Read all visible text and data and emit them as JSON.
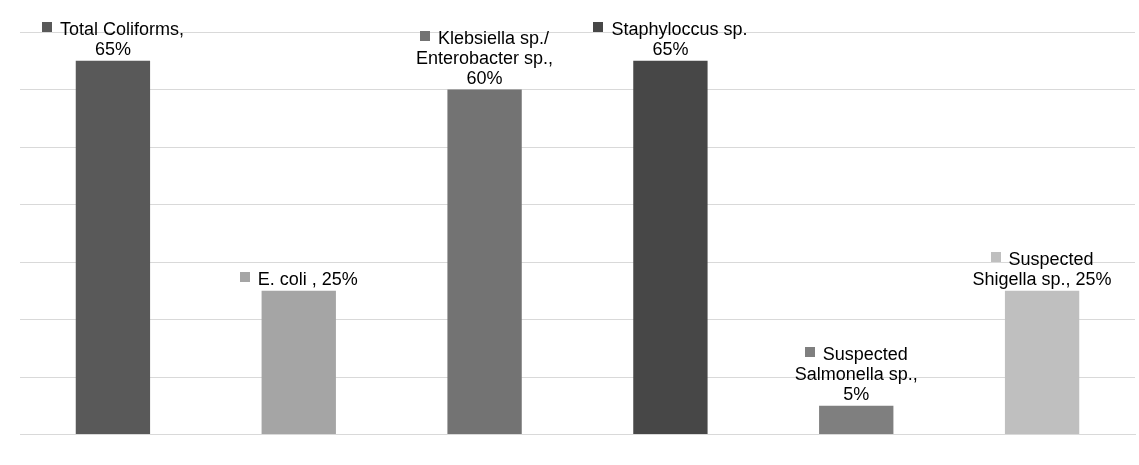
{
  "chart_data": {
    "type": "bar",
    "categories": [
      null,
      null,
      null,
      null,
      null,
      null
    ],
    "values": [
      65,
      25,
      60,
      65,
      5,
      25
    ],
    "colors": [
      "#595959",
      "#a5a5a5",
      "#737373",
      "#474747",
      "#7f7f7f",
      "#bfbfbf"
    ],
    "value_labels": [
      "Total Coliforms, 65%",
      "E. coli , 25%",
      "Klebsiella sp./ Enterobacter sp., 60%",
      "Staphyloccus sp. 65%",
      "Suspected Salmonella sp., 5%",
      "Suspected Shigella sp., 25%"
    ],
    "ylim": [
      0,
      70
    ],
    "yticks": [
      {
        "value": 0,
        "label": null
      },
      {
        "value": 10,
        "label": null
      },
      {
        "value": 20,
        "label": null
      },
      {
        "value": 30,
        "label": null
      },
      {
        "value": 40,
        "label": null
      },
      {
        "value": 50,
        "label": null
      },
      {
        "value": 60,
        "label": null
      },
      {
        "value": 70,
        "label": null
      }
    ],
    "grid": "y",
    "legend": false
  }
}
